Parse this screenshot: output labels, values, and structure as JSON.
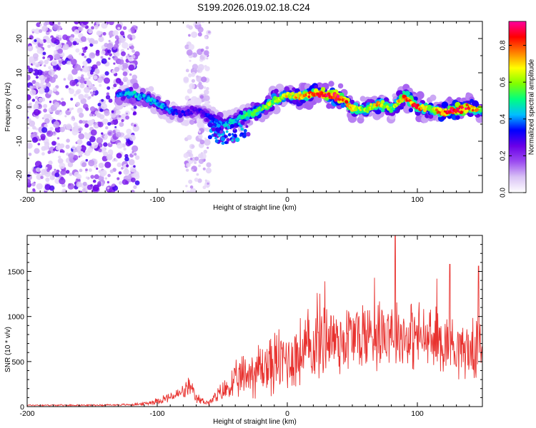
{
  "title": "S199.2026.019.02.18.C24",
  "chart_data": [
    {
      "type": "heatmap",
      "title": "S199.2026.019.02.18.C24",
      "xlabel": "Height of straight line (km)",
      "ylabel": "Frequency (Hz)",
      "xlim": [
        -200,
        150
      ],
      "ylim": [
        -25,
        25
      ],
      "xticks": [
        -200,
        -100,
        0,
        100
      ],
      "yticks": [
        -20,
        -10,
        0,
        10,
        20
      ],
      "colorbar": {
        "label": "Normalized spectral amplitude",
        "range": [
          0.0,
          0.93
        ],
        "ticks": [
          0.0,
          0.2,
          0.4,
          0.6,
          0.8
        ],
        "tick_labels": [
          "0.0",
          "0.2",
          "0.4",
          "0.6",
          "0.8"
        ],
        "colormap": [
          "#ffffff",
          "#d9c2f5",
          "#9b4bf0",
          "#6a00e8",
          "#0000ff",
          "#00bfff",
          "#00ff80",
          "#80ff00",
          "#ffff00",
          "#ff8000",
          "#ff0000",
          "#ff00a0"
        ]
      },
      "ridge": {
        "x": [
          -130,
          -120,
          -110,
          -100,
          -90,
          -80,
          -70,
          -60,
          -50,
          -40,
          -30,
          -20,
          -10,
          0,
          10,
          20,
          30,
          40,
          50,
          60,
          70,
          80,
          90,
          100,
          110,
          120,
          130,
          140,
          150
        ],
        "y": [
          3.5,
          4,
          3,
          1,
          -1,
          -2,
          -1,
          -3,
          -5,
          -4,
          -2,
          -0.5,
          2,
          3.5,
          3,
          4,
          3.5,
          3,
          0,
          -1,
          1,
          -0.5,
          3,
          0,
          -0.5,
          -1.5,
          -1,
          0,
          -1
        ],
        "peak_amplitude": [
          0.35,
          0.45,
          0.4,
          0.45,
          0.35,
          0.3,
          0.25,
          0.35,
          0.4,
          0.45,
          0.5,
          0.55,
          0.6,
          0.65,
          0.7,
          0.8,
          0.85,
          0.9,
          0.7,
          0.6,
          0.7,
          0.55,
          0.75,
          0.8,
          0.6,
          0.8,
          0.85,
          0.8,
          0.6
        ]
      },
      "noise_regions": [
        {
          "x_range": [
            -200,
            -115
          ],
          "y_range": [
            -25,
            25
          ],
          "amplitude": [
            0.05,
            0.3
          ]
        },
        {
          "x_range": [
            -78,
            -60
          ],
          "y_range": [
            -25,
            25
          ],
          "amplitude": [
            0.05,
            0.15
          ]
        }
      ]
    },
    {
      "type": "line",
      "xlabel": "Height of straight line (km)",
      "ylabel": "SNR (10 * v/v)",
      "xlim": [
        -200,
        150
      ],
      "ylim": [
        0,
        1900
      ],
      "xticks": [
        -200,
        -100,
        0,
        100
      ],
      "yticks": [
        0,
        500,
        1000,
        1500
      ],
      "color": "#e8322f",
      "series": [
        {
          "name": "SNR",
          "envelope_x": [
            -200,
            -150,
            -120,
            -110,
            -100,
            -90,
            -80,
            -75,
            -70,
            -60,
            -50,
            -40,
            -30,
            -20,
            -10,
            0,
            10,
            20,
            30,
            40,
            50,
            60,
            70,
            80,
            90,
            100,
            110,
            120,
            130,
            140,
            150
          ],
          "envelope_y": [
            15,
            15,
            20,
            30,
            60,
            100,
            150,
            200,
            80,
            40,
            150,
            250,
            350,
            400,
            450,
            500,
            550,
            650,
            750,
            700,
            750,
            750,
            800,
            850,
            750,
            750,
            700,
            700,
            650,
            600,
            580
          ],
          "spread": [
            8,
            8,
            12,
            20,
            40,
            60,
            80,
            110,
            60,
            30,
            120,
            200,
            280,
            330,
            360,
            380,
            400,
            450,
            450,
            420,
            420,
            420,
            400,
            400,
            380,
            380,
            360,
            360,
            340,
            320,
            300
          ],
          "spikes": [
            {
              "x": -76,
              "y": 320
            },
            {
              "x": 23,
              "y": 1260
            },
            {
              "x": 29,
              "y": 1390
            },
            {
              "x": 67,
              "y": 1430
            },
            {
              "x": 83,
              "y": 1900
            },
            {
              "x": 115,
              "y": 1420
            },
            {
              "x": 125,
              "y": 1580
            },
            {
              "x": 147,
              "y": 1560
            }
          ]
        }
      ]
    }
  ]
}
